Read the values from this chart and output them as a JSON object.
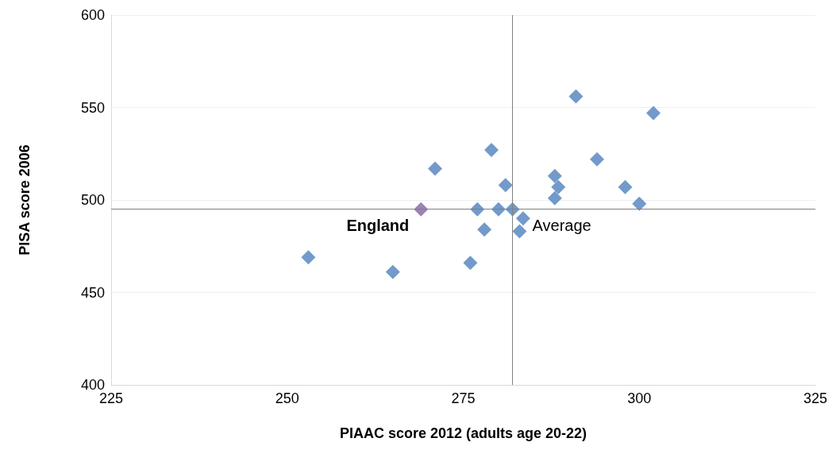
{
  "chart_data": {
    "type": "scatter",
    "xlabel": "PIAAC score 2012 (adults age 20-22)",
    "ylabel": "PISA score 2006",
    "x": [
      253,
      265,
      271,
      269,
      276,
      277,
      278,
      279,
      280,
      281,
      282,
      283.5,
      283,
      288,
      288.5,
      288,
      291,
      294,
      298,
      300,
      302
    ],
    "values": [
      469,
      461,
      517,
      495,
      466,
      495,
      484,
      527,
      495,
      508,
      495,
      490,
      483,
      513,
      507,
      501,
      556,
      522,
      507,
      498,
      547
    ],
    "colors": [
      "#4f81bd",
      "#4f81bd",
      "#4f81bd",
      "#8064a2",
      "#4f81bd",
      "#4f81bd",
      "#4f81bd",
      "#4f81bd",
      "#4f81bd",
      "#4f81bd",
      "#4f81bd",
      "#4f81bd",
      "#4f81bd",
      "#4f81bd",
      "#4f81bd",
      "#4f81bd",
      "#4f81bd",
      "#4f81bd",
      "#4f81bd",
      "#4f81bd",
      "#4f81bd"
    ],
    "marker": "diamond",
    "xlim": [
      225,
      325
    ],
    "xticks": [
      225,
      250,
      275,
      300,
      325
    ],
    "ylim": [
      400,
      600
    ],
    "yticks": [
      400,
      450,
      500,
      550,
      600
    ],
    "grid": "y",
    "ref_lines": [
      {
        "axis": "x",
        "value": 282,
        "color": "#808080"
      },
      {
        "axis": "y",
        "value": 495,
        "color": "#808080"
      }
    ],
    "annotations": [
      {
        "text": "England",
        "x": 269,
        "y": 495
      },
      {
        "text": "Average",
        "x": 282,
        "y": 495
      }
    ]
  }
}
